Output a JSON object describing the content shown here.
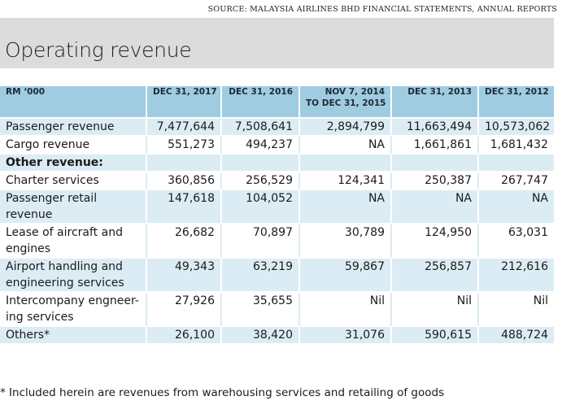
{
  "source": "SOURCE: MALAYSIA AIRLINES BHD FINANCIAL STATEMENTS, ANNUAL REPORTS",
  "title": "Operating revenue",
  "table": {
    "columns": [
      {
        "line1": "RM ‘000",
        "line2": ""
      },
      {
        "line1": "DEC 31, 2017",
        "line2": ""
      },
      {
        "line1": "DEC 31, 2016",
        "line2": ""
      },
      {
        "line1": "NOV 7, 2014",
        "line2": "TO DEC 31, 2015"
      },
      {
        "line1": "DEC 31, 2013",
        "line2": ""
      },
      {
        "line1": "DEC 31, 2012",
        "line2": ""
      }
    ],
    "rows": [
      {
        "label": "Passenger revenue",
        "values": [
          "7,477,644",
          "7,508,641",
          "2,894,799",
          "11,663,494",
          "10,573,062"
        ]
      },
      {
        "label": "Cargo revenue",
        "values": [
          "551,273",
          "494,237",
          "NA",
          "1,661,861",
          "1,681,432"
        ]
      },
      {
        "label": "Other revenue:",
        "values": [
          "",
          "",
          "",
          "",
          ""
        ],
        "section": true
      },
      {
        "label": "Charter services",
        "values": [
          "360,856",
          "256,529",
          "124,341",
          "250,387",
          "267,747"
        ]
      },
      {
        "label": "Passenger retail revenue",
        "values": [
          "147,618",
          "104,052",
          "NA",
          "NA",
          "NA"
        ]
      },
      {
        "label": "Lease of aircraft and engines",
        "values": [
          "26,682",
          "70,897",
          "30,789",
          "124,950",
          "63,031"
        ]
      },
      {
        "label": "Airport handling and engineering services",
        "values": [
          "49,343",
          "63,219",
          "59,867",
          "256,857",
          "212,616"
        ]
      },
      {
        "label": "Intercompany engneer-ing services",
        "values": [
          "27,926",
          "35,655",
          "Nil",
          "Nil",
          "Nil"
        ]
      },
      {
        "label": "Others*",
        "values": [
          "26,100",
          "38,420",
          "31,076",
          "590,615",
          "488,724"
        ]
      }
    ]
  },
  "footnote": "* Included herein are revenues from warehousing services and retailing of goods",
  "colors": {
    "header": "#9fcce1",
    "band": "#dcecf4",
    "title_band": "#dcdcdc"
  }
}
